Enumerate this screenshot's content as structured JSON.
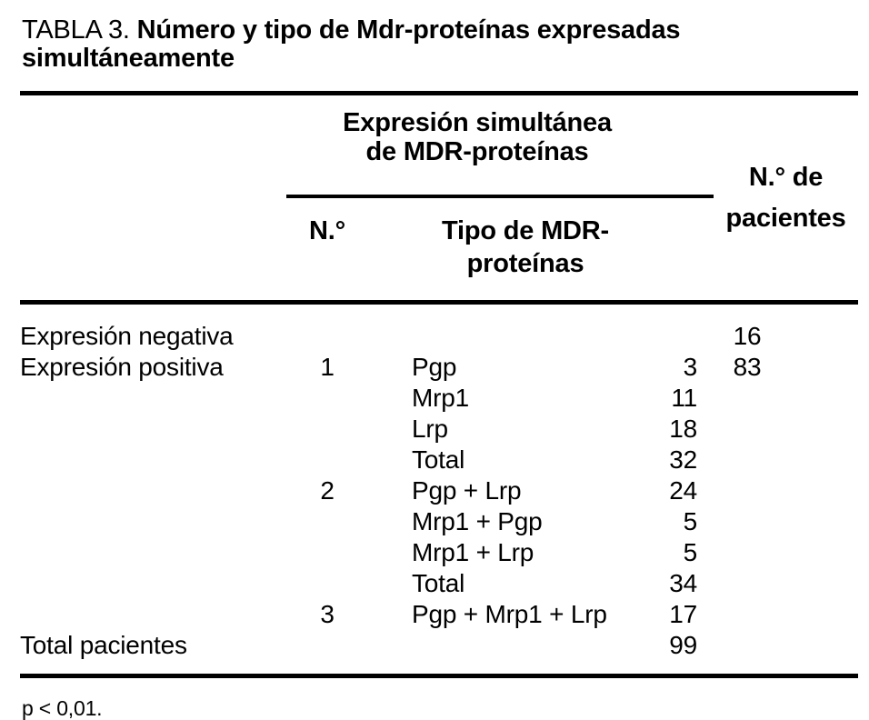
{
  "title": {
    "label": "TABLA 3.",
    "text": "Número y tipo de Mdr-proteínas expresadas simultáneamente"
  },
  "header": {
    "group": {
      "line1": "Expresión simultánea",
      "line2": "de MDR-proteínas"
    },
    "sub_n": "N.°",
    "sub_tipo": {
      "line1": "Tipo de MDR-",
      "line2": "proteínas"
    },
    "pacientes": {
      "line1": "N.° de",
      "line2": "pacientes"
    }
  },
  "rows": [
    {
      "label": "Expresión negativa",
      "n": "",
      "tipo": "",
      "count": "",
      "pacientes": "16"
    },
    {
      "label": "Expresión positiva",
      "n": "1",
      "tipo": "Pgp",
      "count": "3",
      "pacientes": "83"
    },
    {
      "label": "",
      "n": "",
      "tipo": "Mrp1",
      "count": "11",
      "pacientes": ""
    },
    {
      "label": "",
      "n": "",
      "tipo": "Lrp",
      "count": "18",
      "pacientes": ""
    },
    {
      "label": "",
      "n": "",
      "tipo": "Total",
      "count": "32",
      "pacientes": ""
    },
    {
      "label": "",
      "n": "2",
      "tipo": "Pgp + Lrp",
      "count": "24",
      "pacientes": ""
    },
    {
      "label": "",
      "n": "",
      "tipo": "Mrp1 + Pgp",
      "count": "5",
      "pacientes": ""
    },
    {
      "label": "",
      "n": "",
      "tipo": "Mrp1 + Lrp",
      "count": "5",
      "pacientes": ""
    },
    {
      "label": "",
      "n": "",
      "tipo": "Total",
      "count": "34",
      "pacientes": ""
    },
    {
      "label": "",
      "n": "3",
      "tipo": "Pgp + Mrp1 + Lrp",
      "count": "17",
      "pacientes": ""
    },
    {
      "label": "Total pacientes",
      "n": "",
      "tipo": "",
      "count": "99",
      "pacientes": ""
    }
  ],
  "footnote": "p < 0,01.",
  "colors": {
    "text": "#000000",
    "background": "#ffffff",
    "rule": "#000000"
  }
}
